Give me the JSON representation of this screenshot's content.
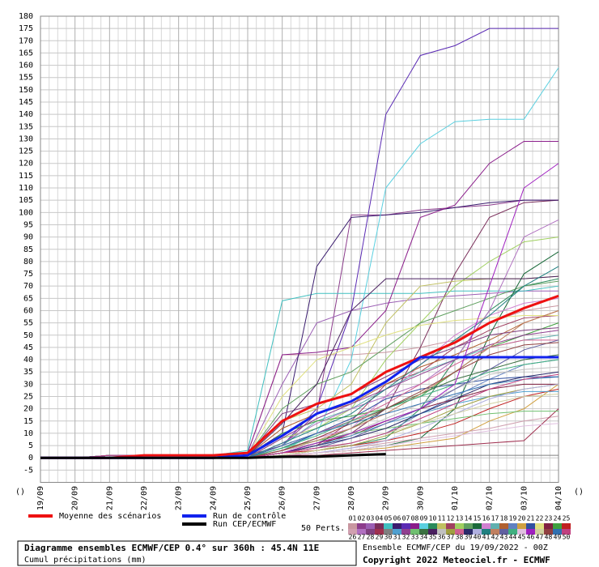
{
  "chart_data": {
    "type": "line",
    "title": "Diagramme ensembles ECMWF/CEP 0.4° sur 360h : 45.4N 11E",
    "subtitle": "Cumul précipitations (mm)",
    "run_info": "Ensemble ECMWF/CEP du 19/09/2022 - 00Z",
    "copyright": "Copyright 2022 Meteociel.fr - ECMWF",
    "axis_markers": [
      "()",
      "()"
    ],
    "categories": [
      "19/09",
      "20/09",
      "21/09",
      "22/09",
      "23/09",
      "24/09",
      "25/09",
      "26/09",
      "27/09",
      "28/09",
      "29/09",
      "30/09",
      "01/10",
      "02/10",
      "03/10",
      "04/10"
    ],
    "ylim": [
      -10,
      180
    ],
    "yticks": [
      -5,
      0,
      5,
      10,
      15,
      20,
      25,
      30,
      35,
      40,
      45,
      50,
      55,
      60,
      65,
      70,
      75,
      80,
      85,
      90,
      95,
      100,
      105,
      110,
      115,
      120,
      125,
      130,
      135,
      140,
      145,
      150,
      155,
      160,
      165,
      170,
      175,
      180
    ],
    "grid": true,
    "series": [
      {
        "name": "Moyenne des scénarios",
        "color": "#ee1111",
        "values": [
          0,
          0,
          0,
          1,
          1,
          1,
          2,
          15,
          22,
          26,
          35,
          41,
          47,
          55,
          61,
          66
        ]
      },
      {
        "name": "Run de contrôle",
        "color": "#1122ee",
        "values": [
          0,
          0,
          0,
          0,
          0,
          0,
          1,
          9,
          18,
          23,
          31,
          41,
          41,
          41,
          41,
          41
        ]
      },
      {
        "name": "Run CEP/ECMWF",
        "color": "#000000",
        "values": [
          0,
          0,
          0,
          0,
          0,
          0,
          0,
          0.5,
          0.5,
          1,
          1.5,
          null,
          null,
          null,
          null,
          null
        ]
      }
    ],
    "perturbations_label": "50 Perts.",
    "perturbations": [
      {
        "name": "01",
        "color": "#c896a0",
        "values": [
          0,
          0,
          1,
          1,
          1,
          1,
          2,
          42,
          42,
          42,
          43,
          45,
          48,
          55,
          60,
          62
        ]
      },
      {
        "name": "02",
        "color": "#8c3c8c",
        "values": [
          0,
          0,
          1,
          1,
          1,
          1,
          1,
          5,
          18,
          99,
          99,
          101,
          102,
          103,
          105,
          105
        ]
      },
      {
        "name": "03",
        "color": "#9b5fb4",
        "values": [
          0,
          0,
          1,
          1,
          1,
          1,
          1,
          30,
          55,
          60,
          63,
          65,
          66,
          67,
          68,
          68
        ]
      },
      {
        "name": "04",
        "color": "#7a2e5a",
        "values": [
          0,
          0,
          1,
          1,
          1,
          1,
          0,
          2,
          5,
          10,
          20,
          45,
          75,
          98,
          104,
          105
        ]
      },
      {
        "name": "05",
        "color": "#40c0c0",
        "values": [
          0,
          0,
          1,
          1,
          1,
          1,
          3,
          64,
          67,
          67,
          67,
          67,
          68,
          68,
          68,
          70
        ]
      },
      {
        "name": "06",
        "color": "#3a1c6e",
        "values": [
          0,
          0,
          1,
          1,
          1,
          1,
          1,
          10,
          78,
          98,
          99,
          100,
          102,
          104,
          105,
          105
        ]
      },
      {
        "name": "07",
        "color": "#5a2ab4",
        "values": [
          0,
          0,
          1,
          1,
          1,
          1,
          0,
          5,
          20,
          60,
          140,
          164,
          168,
          175,
          175,
          175
        ]
      },
      {
        "name": "08",
        "color": "#8a1c8a",
        "values": [
          0,
          0,
          1,
          1,
          1,
          1,
          2,
          42,
          43,
          45,
          60,
          98,
          103,
          120,
          129,
          129
        ]
      },
      {
        "name": "09",
        "color": "#5ad0e0",
        "values": [
          0,
          0,
          1,
          1,
          1,
          1,
          0,
          3,
          10,
          40,
          110,
          128,
          137,
          138,
          138,
          159
        ]
      },
      {
        "name": "10",
        "color": "#2a8a5a",
        "values": [
          0,
          0,
          1,
          1,
          1,
          1,
          0,
          1,
          3,
          5,
          8,
          20,
          40,
          60,
          70,
          73
        ]
      },
      {
        "name": "11",
        "color": "#c0c060",
        "values": [
          0,
          0,
          1,
          1,
          1,
          1,
          1,
          15,
          20,
          30,
          55,
          70,
          72,
          73,
          73,
          74
        ]
      },
      {
        "name": "12",
        "color": "#a04060",
        "values": [
          0,
          0,
          1,
          1,
          1,
          1,
          0,
          2,
          5,
          15,
          30,
          35,
          45,
          52,
          57,
          58
        ]
      },
      {
        "name": "13",
        "color": "#a0d060",
        "values": [
          0,
          0,
          1,
          1,
          1,
          1,
          0,
          8,
          12,
          20,
          40,
          55,
          70,
          80,
          88,
          90
        ]
      },
      {
        "name": "14",
        "color": "#60a060",
        "values": [
          0,
          0,
          1,
          1,
          1,
          1,
          1,
          20,
          30,
          35,
          45,
          55,
          60,
          65,
          70,
          72
        ]
      },
      {
        "name": "15",
        "color": "#1a6a3a",
        "values": [
          0,
          0,
          1,
          1,
          1,
          1,
          0,
          1,
          2,
          3,
          5,
          8,
          20,
          50,
          75,
          84
        ]
      },
      {
        "name": "16",
        "color": "#d080d0",
        "values": [
          0,
          0,
          1,
          1,
          1,
          1,
          0,
          3,
          8,
          12,
          25,
          38,
          50,
          58,
          63,
          65
        ]
      },
      {
        "name": "17",
        "color": "#60b0b0",
        "values": [
          0,
          0,
          1,
          1,
          1,
          1,
          0,
          5,
          15,
          20,
          28,
          35,
          40,
          45,
          48,
          50
        ]
      },
      {
        "name": "18",
        "color": "#b06030",
        "values": [
          0,
          0,
          1,
          1,
          1,
          1,
          1,
          12,
          18,
          22,
          30,
          37,
          42,
          48,
          55,
          60
        ]
      },
      {
        "name": "19",
        "color": "#6080c0",
        "values": [
          0,
          0,
          1,
          1,
          1,
          1,
          0,
          2,
          4,
          6,
          10,
          18,
          25,
          32,
          38,
          40
        ]
      },
      {
        "name": "20",
        "color": "#d0a040",
        "values": [
          0,
          0,
          1,
          1,
          1,
          1,
          0,
          1,
          2,
          3,
          4,
          6,
          8,
          15,
          20,
          30
        ]
      },
      {
        "name": "21",
        "color": "#3050a0",
        "values": [
          0,
          0,
          1,
          1,
          1,
          1,
          0,
          4,
          10,
          16,
          24,
          28,
          30,
          32,
          33,
          33
        ]
      },
      {
        "name": "22",
        "color": "#e0e080",
        "values": [
          0,
          0,
          1,
          1,
          1,
          1,
          1,
          25,
          40,
          45,
          50,
          54,
          56,
          57,
          58,
          58
        ]
      },
      {
        "name": "23",
        "color": "#802040",
        "values": [
          0,
          0,
          1,
          1,
          1,
          1,
          0,
          3,
          6,
          9,
          15,
          20,
          24,
          28,
          30,
          30
        ]
      },
      {
        "name": "24",
        "color": "#40a040",
        "values": [
          0,
          0,
          1,
          1,
          1,
          1,
          0,
          10,
          15,
          17,
          20,
          25,
          35,
          45,
          50,
          55
        ]
      },
      {
        "name": "25",
        "color": "#c02020",
        "values": [
          0,
          0,
          1,
          1,
          1,
          1,
          0,
          2,
          3,
          5,
          7,
          10,
          14,
          20,
          25,
          28
        ]
      },
      {
        "name": "26",
        "color": "#d0a0b0",
        "values": [
          0,
          0,
          1,
          1,
          1,
          1,
          0,
          1,
          2,
          4,
          6,
          8,
          10,
          12,
          15,
          17
        ]
      },
      {
        "name": "27",
        "color": "#b070c0",
        "values": [
          0,
          0,
          1,
          1,
          1,
          1,
          0,
          6,
          14,
          20,
          25,
          30,
          40,
          60,
          90,
          97
        ]
      },
      {
        "name": "28",
        "color": "#804080",
        "values": [
          0,
          0,
          1,
          1,
          1,
          1,
          1,
          18,
          22,
          26,
          33,
          40,
          45,
          50,
          52,
          53
        ]
      },
      {
        "name": "29",
        "color": "#a03050",
        "values": [
          0,
          0,
          1,
          1,
          1,
          1,
          0,
          1,
          1,
          2,
          3,
          4,
          5,
          6,
          7,
          20
        ]
      },
      {
        "name": "30",
        "color": "#808080",
        "values": [
          0,
          0,
          1,
          1,
          1,
          1,
          0,
          0,
          1,
          1,
          1,
          1,
          1,
          1,
          1,
          1
        ]
      },
      {
        "name": "31",
        "color": "#50a0d0",
        "values": [
          0,
          0,
          1,
          1,
          1,
          1,
          0,
          2,
          5,
          9,
          14,
          18,
          22,
          25,
          27,
          27
        ]
      },
      {
        "name": "32",
        "color": "#904090",
        "values": [
          0,
          0,
          1,
          1,
          1,
          1,
          0,
          8,
          16,
          22,
          28,
          34,
          40,
          46,
          50,
          52
        ]
      },
      {
        "name": "33",
        "color": "#70c070",
        "values": [
          0,
          0,
          1,
          1,
          1,
          1,
          0,
          4,
          7,
          10,
          12,
          14,
          16,
          18,
          19,
          19
        ]
      },
      {
        "name": "34",
        "color": "#3a7040",
        "values": [
          0,
          0,
          1,
          1,
          1,
          1,
          0,
          2,
          6,
          12,
          20,
          26,
          32,
          36,
          40,
          42
        ]
      },
      {
        "name": "35",
        "color": "#4a2060",
        "values": [
          0,
          0,
          1,
          1,
          1,
          1,
          1,
          14,
          30,
          60,
          73,
          73,
          73,
          73,
          73,
          74
        ]
      },
      {
        "name": "36",
        "color": "#c0c0c0",
        "values": [
          0,
          0,
          1,
          1,
          1,
          1,
          0,
          3,
          6,
          10,
          16,
          22,
          28,
          34,
          36,
          37
        ]
      },
      {
        "name": "37",
        "color": "#a0a040",
        "values": [
          0,
          0,
          1,
          1,
          1,
          1,
          0,
          1,
          3,
          5,
          9,
          14,
          20,
          25,
          28,
          30
        ]
      },
      {
        "name": "38",
        "color": "#d06090",
        "values": [
          0,
          0,
          1,
          1,
          1,
          1,
          0,
          5,
          10,
          15,
          22,
          30,
          38,
          45,
          48,
          48
        ]
      },
      {
        "name": "39",
        "color": "#2a2a6a",
        "values": [
          0,
          0,
          1,
          1,
          1,
          1,
          0,
          2,
          5,
          8,
          12,
          18,
          24,
          30,
          33,
          35
        ]
      },
      {
        "name": "40",
        "color": "#b0b0e0",
        "values": [
          0,
          0,
          1,
          1,
          1,
          1,
          0,
          1,
          2,
          4,
          7,
          12,
          18,
          24,
          28,
          30
        ]
      },
      {
        "name": "41",
        "color": "#208080",
        "values": [
          0,
          0,
          1,
          1,
          1,
          1,
          0,
          6,
          12,
          18,
          28,
          38,
          48,
          58,
          70,
          78
        ]
      },
      {
        "name": "42",
        "color": "#c08060",
        "values": [
          0,
          0,
          1,
          1,
          1,
          1,
          0,
          3,
          7,
          12,
          18,
          26,
          35,
          45,
          55,
          60
        ]
      },
      {
        "name": "43",
        "color": "#6060a0",
        "values": [
          0,
          0,
          1,
          1,
          1,
          1,
          0,
          2,
          4,
          8,
          14,
          20,
          28,
          36,
          44,
          48
        ]
      },
      {
        "name": "44",
        "color": "#40b080",
        "values": [
          0,
          0,
          1,
          1,
          1,
          1,
          0,
          4,
          9,
          15,
          20,
          25,
          30,
          35,
          38,
          40
        ]
      },
      {
        "name": "45",
        "color": "#e0c0e0",
        "values": [
          0,
          0,
          1,
          1,
          1,
          1,
          0,
          1,
          2,
          3,
          5,
          7,
          9,
          11,
          13,
          14
        ]
      },
      {
        "name": "46",
        "color": "#a020c0",
        "values": [
          0,
          0,
          1,
          1,
          1,
          1,
          0,
          2,
          6,
          10,
          15,
          20,
          30,
          70,
          110,
          120
        ]
      },
      {
        "name": "47",
        "color": "#d0d0a0",
        "values": [
          0,
          0,
          1,
          1,
          1,
          1,
          0,
          1,
          3,
          6,
          10,
          14,
          18,
          22,
          25,
          26
        ]
      },
      {
        "name": "48",
        "color": "#904040",
        "values": [
          0,
          0,
          1,
          1,
          1,
          1,
          0,
          3,
          8,
          14,
          20,
          27,
          35,
          42,
          46,
          47
        ]
      },
      {
        "name": "49",
        "color": "#3070b0",
        "values": [
          0,
          0,
          1,
          1,
          1,
          1,
          0,
          5,
          10,
          14,
          18,
          22,
          26,
          30,
          32,
          33
        ]
      },
      {
        "name": "50",
        "color": "#c04080",
        "values": [
          0,
          0,
          1,
          1,
          1,
          1,
          0,
          2,
          4,
          6,
          10,
          16,
          22,
          28,
          32,
          34
        ]
      }
    ]
  }
}
